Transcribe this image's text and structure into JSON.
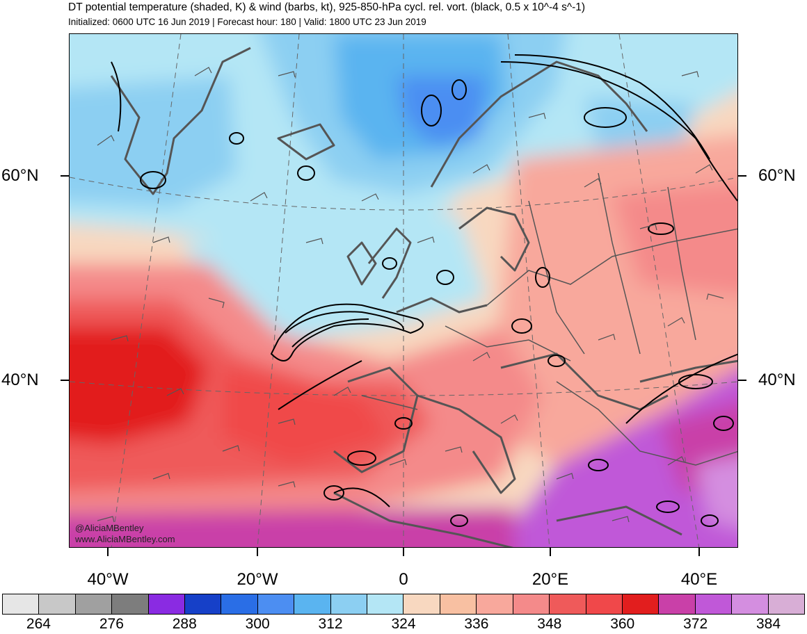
{
  "title": "DT potential temperature (shaded, K) & wind (barbs, kt), 925-850-hPa cycl. rel. vort. (black, 0.5 x 10^-4 s^-1)",
  "subtitle": "Initialized: 0600 UTC 16 Jun 2019 | Forecast hour: 180 | Valid: 1800 UTC 23 Jun 2019",
  "lat_labels": {
    "lat60_left": "60°N",
    "lat60_right": "60°N",
    "lat40_left": "40°N",
    "lat40_right": "40°N"
  },
  "lon_labels": {
    "w40": "40°W",
    "w20": "20°W",
    "zero": "0",
    "e20": "20°E",
    "e40": "40°E"
  },
  "watermark": {
    "handle": "@AliciaMBentley",
    "site": "www.AliciaMBentley.com"
  },
  "colorbar": {
    "colors": [
      "#e6e6e6",
      "#c8c8c8",
      "#a0a0a0",
      "#7d7d7d",
      "#8a2be2",
      "#1640c8",
      "#2a6ee6",
      "#4c8ef2",
      "#5ab4f0",
      "#8ccff2",
      "#b4e6f5",
      "#f8d8c0",
      "#f8c0a2",
      "#f8a89c",
      "#f48a8a",
      "#ef5a5a",
      "#f0484a",
      "#e21e1e",
      "#c940a8",
      "#c058d8",
      "#d48ee0",
      "#d8aed6"
    ],
    "labels": [
      "264",
      "276",
      "288",
      "300",
      "312",
      "324",
      "336",
      "348",
      "360",
      "372",
      "384"
    ]
  }
}
